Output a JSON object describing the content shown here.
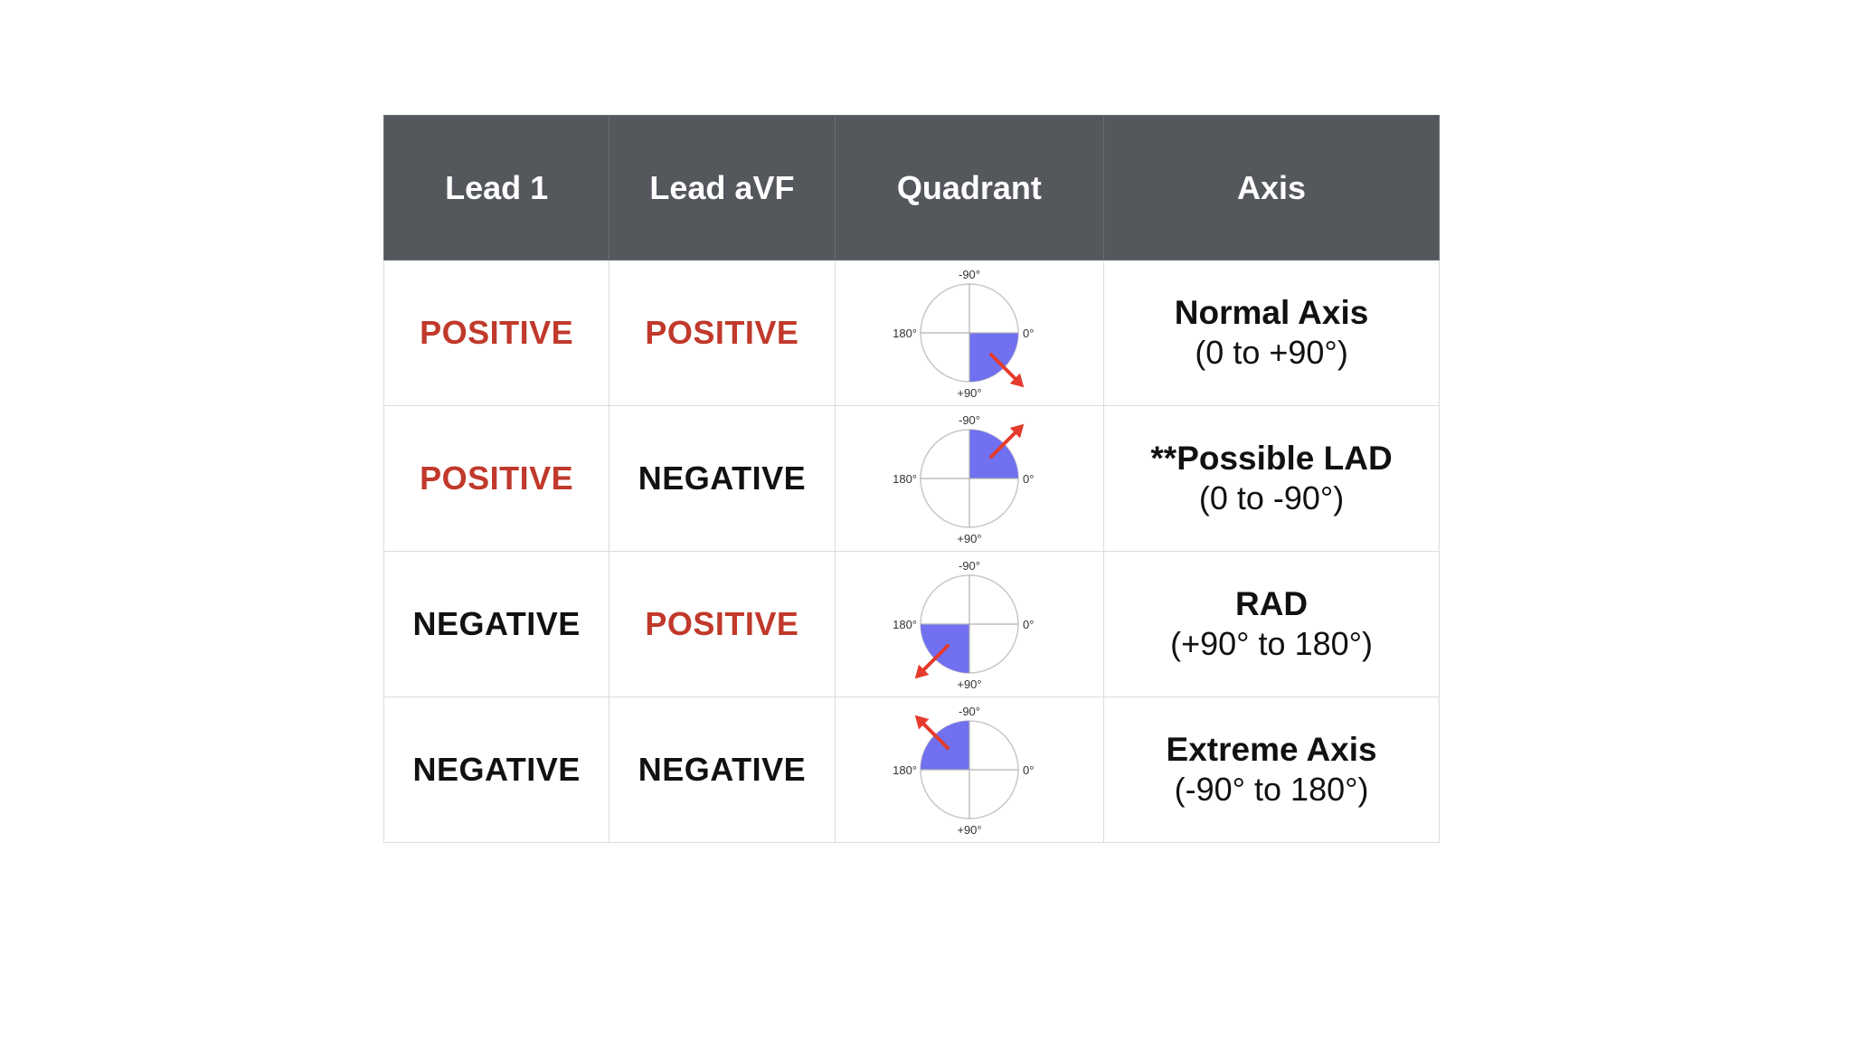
{
  "colors": {
    "header_bg": "#54575c",
    "positive": "#c0392b",
    "negative": "#111111",
    "quadrant_fill": "#7070f0",
    "arrow": "#e53b2c"
  },
  "headers": {
    "lead1": "Lead 1",
    "leadavf": "Lead aVF",
    "quadrant": "Quadrant",
    "axis": "Axis"
  },
  "dial_labels": {
    "top": "-90°",
    "bottom": "+90°",
    "left": "180°",
    "right": "0°"
  },
  "rows": [
    {
      "lead1": "POSITIVE",
      "leadavf": "POSITIVE",
      "quadrant": "bottom-right",
      "axis_name": "Normal Axis",
      "axis_range": "(0 to +90°)"
    },
    {
      "lead1": "POSITIVE",
      "leadavf": "NEGATIVE",
      "quadrant": "top-right",
      "axis_name": "**Possible LAD",
      "axis_range": "(0 to -90°)"
    },
    {
      "lead1": "NEGATIVE",
      "leadavf": "POSITIVE",
      "quadrant": "bottom-left",
      "axis_name": "RAD",
      "axis_range": "(+90° to 180°)"
    },
    {
      "lead1": "NEGATIVE",
      "leadavf": "NEGATIVE",
      "quadrant": "top-left",
      "axis_name": "Extreme Axis",
      "axis_range": "(-90° to 180°)"
    }
  ]
}
